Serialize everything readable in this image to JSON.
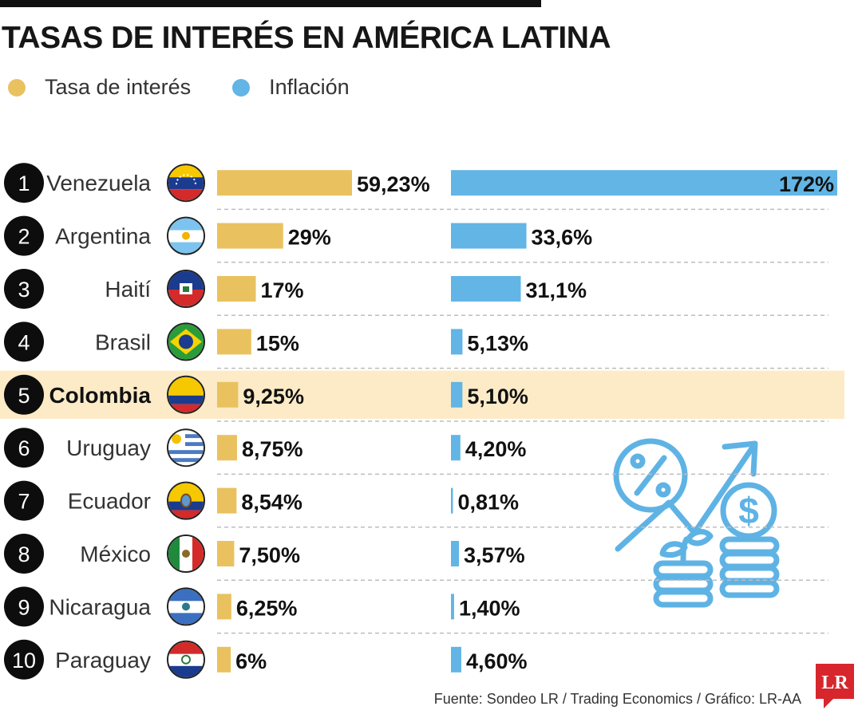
{
  "title": "TASAS DE INTERÉS EN AMÉRICA LATINA",
  "legend": [
    {
      "label": "Tasa de interés",
      "color": "#e9c25f"
    },
    {
      "label": "Inflación",
      "color": "#62b5e5"
    }
  ],
  "highlight_color": "#fcebc6",
  "source": "Fuente: Sondeo LR / Trading Economics / Gráfico: LR-AA",
  "logo_text": "LR",
  "chart_data": {
    "type": "bar",
    "title": "TASAS DE INTERÉS EN AMÉRICA LATINA",
    "highlighted_category": "Colombia",
    "categories": [
      "Venezuela",
      "Argentina",
      "Haití",
      "Brasil",
      "Colombia",
      "Uruguay",
      "Ecuador",
      "México",
      "Nicaragua",
      "Paraguay"
    ],
    "ranks": [
      "1",
      "2",
      "3",
      "4",
      "5",
      "6",
      "7",
      "8",
      "9",
      "10"
    ],
    "series": [
      {
        "name": "Tasa de interés",
        "color": "#e9c25f",
        "values": [
          59.23,
          29,
          17,
          15,
          9.25,
          8.75,
          8.54,
          7.5,
          6.25,
          6
        ],
        "labels": [
          "59,23%",
          "29%",
          "17%",
          "15%",
          "9,25%",
          "8,75%",
          "8,54%",
          "7,50%",
          "6,25%",
          "6%"
        ]
      },
      {
        "name": "Inflación",
        "color": "#62b5e5",
        "values": [
          172,
          33.6,
          31.1,
          5.13,
          5.1,
          4.2,
          0.81,
          3.57,
          1.4,
          4.6
        ],
        "labels": [
          "172%",
          "33,6%",
          "31,1%",
          "5,13%",
          "5,10%",
          "4,20%",
          "0,81%",
          "3,57%",
          "1,40%",
          "4,60%"
        ]
      }
    ]
  }
}
